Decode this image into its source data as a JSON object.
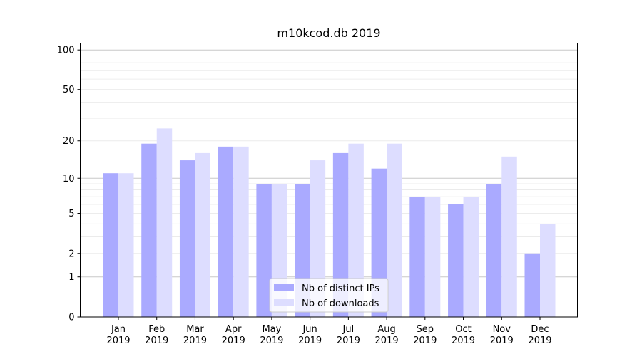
{
  "chart_data": {
    "type": "bar",
    "title": "m10kcod.db 2019",
    "xlabel": "",
    "ylabel": "",
    "yscale": "log(1+y)",
    "ylim": [
      0,
      113
    ],
    "yticks": [
      0,
      1,
      2,
      5,
      10,
      20,
      50,
      100
    ],
    "yticklabels": [
      "0",
      "1",
      "2",
      "5",
      "10",
      "20",
      "50",
      "100"
    ],
    "minor_gridlines": [
      3,
      4,
      6,
      7,
      8,
      9,
      30,
      40,
      60,
      70,
      80,
      90
    ],
    "grid": true,
    "legend_position": "bottom-center",
    "categories": [
      "Jan\n2019",
      "Feb\n2019",
      "Mar\n2019",
      "Apr\n2019",
      "May\n2019",
      "Jun\n2019",
      "Jul\n2019",
      "Aug\n2019",
      "Sep\n2019",
      "Oct\n2019",
      "Nov\n2019",
      "Dec\n2019"
    ],
    "series": [
      {
        "name": "Nb of distinct IPs",
        "color": "#aaaaff",
        "values": [
          11,
          19,
          14,
          18,
          9,
          9,
          16,
          12,
          7,
          6,
          9,
          2
        ]
      },
      {
        "name": "Nb of downloads",
        "color": "#ddddff",
        "values": [
          11,
          25,
          16,
          18,
          9,
          14,
          19,
          19,
          7,
          7,
          15,
          4
        ]
      }
    ]
  }
}
